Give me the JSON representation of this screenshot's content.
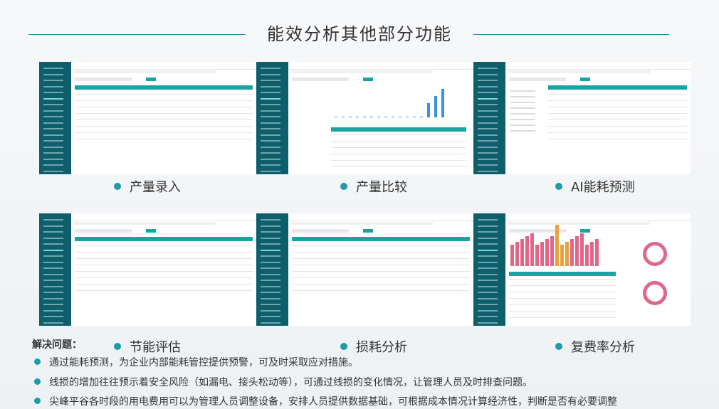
{
  "header": {
    "title": "能效分析其他部分功能"
  },
  "panels": [
    {
      "caption": "产量录入"
    },
    {
      "caption": "产量比较"
    },
    {
      "caption": "AI能耗预测"
    },
    {
      "caption": "节能评估"
    },
    {
      "caption": "损耗分析"
    },
    {
      "caption": "复费率分析"
    }
  ],
  "problems": {
    "heading": "解决问题：",
    "items": [
      "通过能耗预测，为企业内部能耗管控提供预警，可及时采取应对措施。",
      "线损的增加往往预示着安全风险（如漏电、接头松动等），可通过线损的变化情况，让管理人员及时排查问题。",
      "尖峰平谷各时段的用电费用可以为管理人员调整设备，安排人员提供数据基础，可根据成本情况计算经济性，判断是否有必要调整"
    ]
  }
}
